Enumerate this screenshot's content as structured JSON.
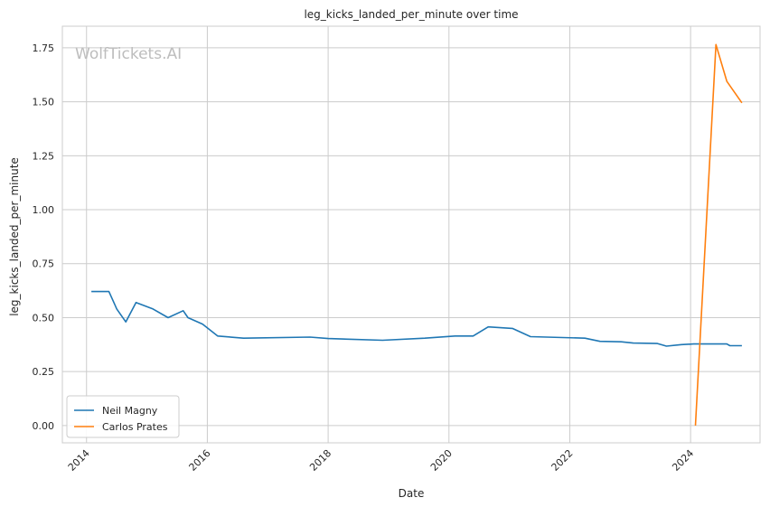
{
  "chart_data": {
    "type": "line",
    "title": "leg_kicks_landed_per_minute over time",
    "xlabel": "Date",
    "ylabel": "leg_kicks_landed_per_minute",
    "watermark": "WolfTickets.AI",
    "xlim": [
      2013.6,
      2025.15
    ],
    "ylim": [
      -0.08,
      1.85
    ],
    "xticks": [
      2014,
      2016,
      2018,
      2020,
      2022,
      2024
    ],
    "xtick_labels": [
      "2014",
      "2016",
      "2018",
      "2020",
      "2022",
      "2024"
    ],
    "yticks": [
      0.0,
      0.25,
      0.5,
      0.75,
      1.0,
      1.25,
      1.5,
      1.75
    ],
    "ytick_labels": [
      "0.00",
      "0.25",
      "0.50",
      "0.75",
      "1.00",
      "1.25",
      "1.50",
      "1.75"
    ],
    "grid": true,
    "legend_position": "bottom-left",
    "series": [
      {
        "name": "Neil Magny",
        "color": "#1f77b4",
        "x": [
          2014.08,
          2014.37,
          2014.5,
          2014.65,
          2014.82,
          2015.1,
          2015.35,
          2015.6,
          2015.68,
          2015.92,
          2016.17,
          2016.6,
          2017.7,
          2018.0,
          2018.9,
          2019.6,
          2020.1,
          2020.4,
          2020.65,
          2021.05,
          2021.35,
          2022.25,
          2022.5,
          2022.85,
          2023.05,
          2023.45,
          2023.6,
          2023.85,
          2024.05,
          2024.6,
          2024.65,
          2024.85
        ],
        "y": [
          0.621,
          0.621,
          0.54,
          0.48,
          0.57,
          0.54,
          0.5,
          0.532,
          0.5,
          0.47,
          0.415,
          0.405,
          0.41,
          0.403,
          0.395,
          0.405,
          0.415,
          0.415,
          0.457,
          0.45,
          0.412,
          0.405,
          0.39,
          0.388,
          0.382,
          0.38,
          0.368,
          0.375,
          0.378,
          0.378,
          0.37,
          0.37
        ]
      },
      {
        "name": "Carlos Prates",
        "color": "#ff7f0e",
        "x": [
          2024.08,
          2024.42,
          2024.6,
          2024.85
        ],
        "y": [
          0.0,
          1.765,
          1.595,
          1.495
        ]
      }
    ]
  }
}
